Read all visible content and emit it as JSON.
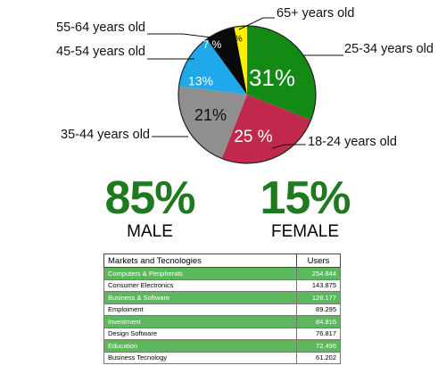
{
  "chart_data": {
    "type": "pie",
    "slices": [
      {
        "label": "25-34 years old",
        "value": 31,
        "pct_text": "31%",
        "color": "#138a13"
      },
      {
        "label": "18-24 years old",
        "value": 25,
        "pct_text": "25 %",
        "color": "#c0294c"
      },
      {
        "label": "35-44 years old",
        "value": 21,
        "pct_text": "21%",
        "color": "#8f8f8f"
      },
      {
        "label": "45-54 years old",
        "value": 13,
        "pct_text": "13%",
        "color": "#1fa9ea"
      },
      {
        "label": "55-64 years old",
        "value": 7,
        "pct_text": "7 %",
        "color": "#0a0a0a"
      },
      {
        "label": "65+ years old",
        "value": 3,
        "pct_text": "3 %",
        "color": "#ffee00"
      }
    ]
  },
  "gender": {
    "male": {
      "pct": "85%",
      "label": "MALE"
    },
    "female": {
      "pct": "15%",
      "label": "FEMALE"
    }
  },
  "table": {
    "headers": [
      "Markets and Tecnologies",
      "Users"
    ],
    "rows": [
      {
        "name": "Computers & Peripherals",
        "users": "254.844",
        "highlight": true
      },
      {
        "name": "Consumer Electronics",
        "users": "143.875",
        "highlight": false
      },
      {
        "name": "Business & Software",
        "users": "128.177",
        "highlight": true
      },
      {
        "name": "Emploiment",
        "users": "89.295",
        "highlight": false
      },
      {
        "name": "Investment",
        "users": "84.816",
        "highlight": true
      },
      {
        "name": "Design Software",
        "users": "76.817",
        "highlight": false
      },
      {
        "name": "Education",
        "users": "72.496",
        "highlight": true
      },
      {
        "name": "Business Tecnology",
        "users": "61.202",
        "highlight": false
      }
    ]
  }
}
